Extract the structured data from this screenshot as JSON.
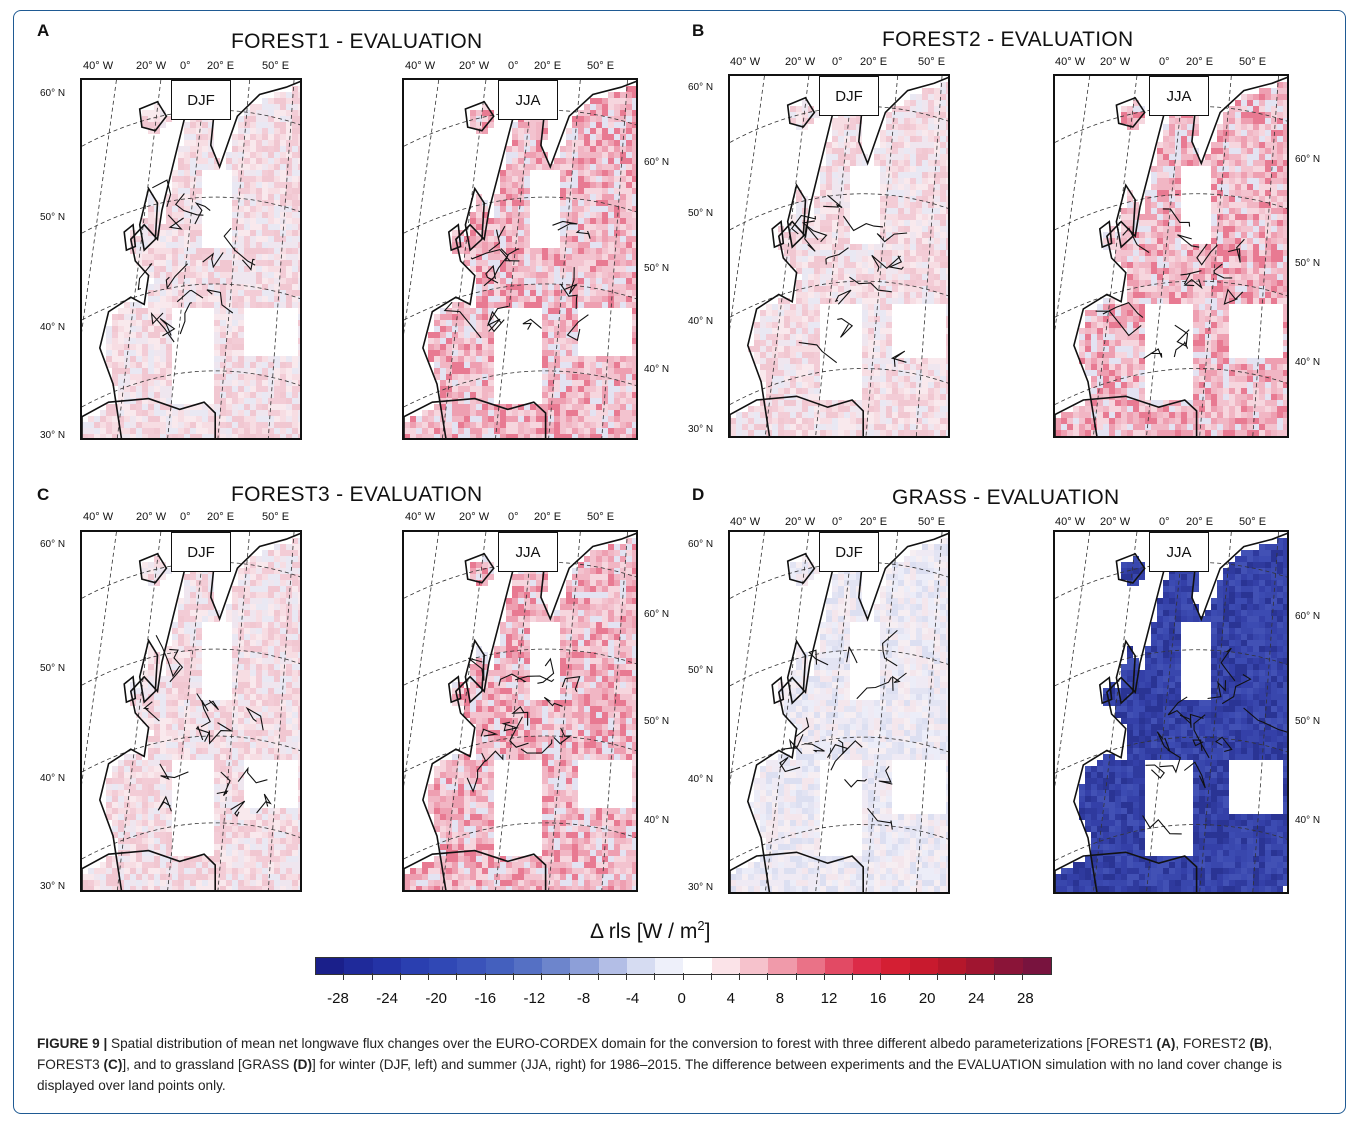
{
  "panels": [
    {
      "letter": "A",
      "title": "FOREST1 - EVALUATION"
    },
    {
      "letter": "B",
      "title": "FOREST2 - EVALUATION"
    },
    {
      "letter": "C",
      "title": "FOREST3 - EVALUATION"
    },
    {
      "letter": "D",
      "title": "GRASS - EVALUATION"
    }
  ],
  "seasons": {
    "winter": "DJF",
    "summer": "JJA"
  },
  "lon_labels": [
    "40° W",
    "20° W",
    "0°",
    "20° E",
    "50° E"
  ],
  "lat_labels_left": [
    "60° N",
    "50° N",
    "40° N",
    "30° N"
  ],
  "lat_labels_right": [
    "60° N",
    "50° N",
    "40° N"
  ],
  "colorbar": {
    "title_prefix": "Δ rls [W / m",
    "title_sup": "2",
    "title_suffix": "]",
    "tick_labels": [
      "-28",
      "-24",
      "-20",
      "-16",
      "-12",
      "-8",
      "-4",
      "0",
      "4",
      "8",
      "12",
      "16",
      "20",
      "24",
      "28"
    ],
    "colors": [
      "#1a1f8a",
      "#1f2a9a",
      "#2433a6",
      "#2a3fb0",
      "#3048b5",
      "#3a53ba",
      "#4460be",
      "#5570c4",
      "#6d85cc",
      "#8d9fd8",
      "#b3bee6",
      "#d6dcf2",
      "#eef0fa",
      "#ffffff",
      "#fbe3e8",
      "#f6c2cc",
      "#f09aaa",
      "#ea7287",
      "#e24a64",
      "#dc2b48",
      "#d41f33",
      "#c81a2e",
      "#b5172b",
      "#a01530",
      "#8a1438",
      "#78133e"
    ]
  },
  "caption": {
    "label": "FIGURE 9 |",
    "text_1": " Spatial distribution of mean net longwave flux changes over the EURO-CORDEX domain for the conversion to forest with three different albedo parameterizations [FOREST1 ",
    "ref_a": "(A)",
    "text_2": ", FOREST2 ",
    "ref_b": "(B)",
    "text_3": ", FOREST3 ",
    "ref_c": "(C)",
    "text_4": "], and to grassland [GRASS ",
    "ref_d": "(D)",
    "text_5": "] for winter (DJF, left) and summer (JJA, right) for 1986–2015. The difference between experiments and the EVALUATION simulation with no land cover change is displayed over land points only."
  }
}
